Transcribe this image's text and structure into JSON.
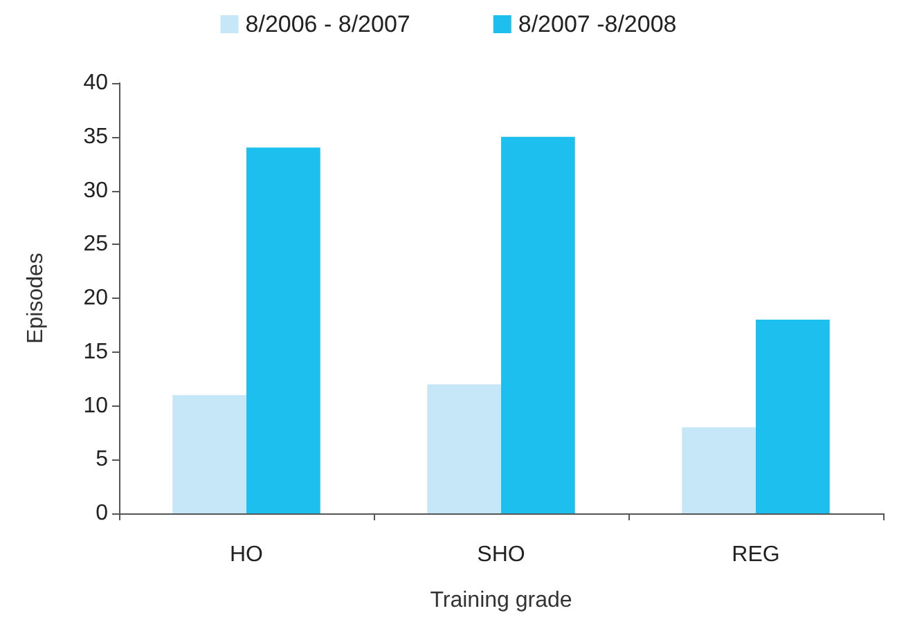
{
  "chart_data": {
    "type": "bar",
    "xlabel": "Training grade",
    "ylabel": "Episodes",
    "categories": [
      "HO",
      "SHO",
      "REG"
    ],
    "series": [
      {
        "name": "8/2006 - 8/2007",
        "color": "#c6e7f7",
        "values": [
          11,
          12,
          8
        ]
      },
      {
        "name": "8/2007 -8/2008",
        "color": "#1cbfee",
        "values": [
          34,
          35,
          18
        ]
      }
    ],
    "ylim": [
      0,
      40
    ],
    "yticks": [
      0,
      5,
      10,
      15,
      20,
      25,
      30,
      35,
      40
    ],
    "grid": false,
    "legend": "top"
  }
}
